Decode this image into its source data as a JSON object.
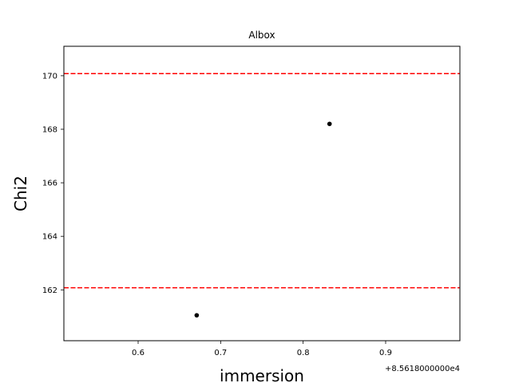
{
  "chart_data": {
    "type": "scatter",
    "title": "Albox",
    "xlabel": "immersion",
    "ylabel": "Chi2",
    "x_offset_label": "+8.5618000000e4",
    "xlim": [
      0.51,
      0.99
    ],
    "ylim": [
      160.1,
      171.1
    ],
    "xticks": [
      0.6,
      0.7,
      0.8,
      0.9
    ],
    "xtick_labels": [
      "0.6",
      "0.7",
      "0.8",
      "0.9"
    ],
    "yticks": [
      162,
      164,
      166,
      168,
      170
    ],
    "ytick_labels": [
      "162",
      "164",
      "166",
      "168",
      "170"
    ],
    "points": [
      {
        "x": 0.671,
        "y": 161.05
      },
      {
        "x": 0.832,
        "y": 168.2
      }
    ],
    "hlines": [
      {
        "y": 170.08,
        "color": "#ff0000",
        "style": "dashed"
      },
      {
        "y": 162.08,
        "color": "#ff0000",
        "style": "dashed"
      }
    ],
    "point_color": "#000000",
    "grid": false
  }
}
